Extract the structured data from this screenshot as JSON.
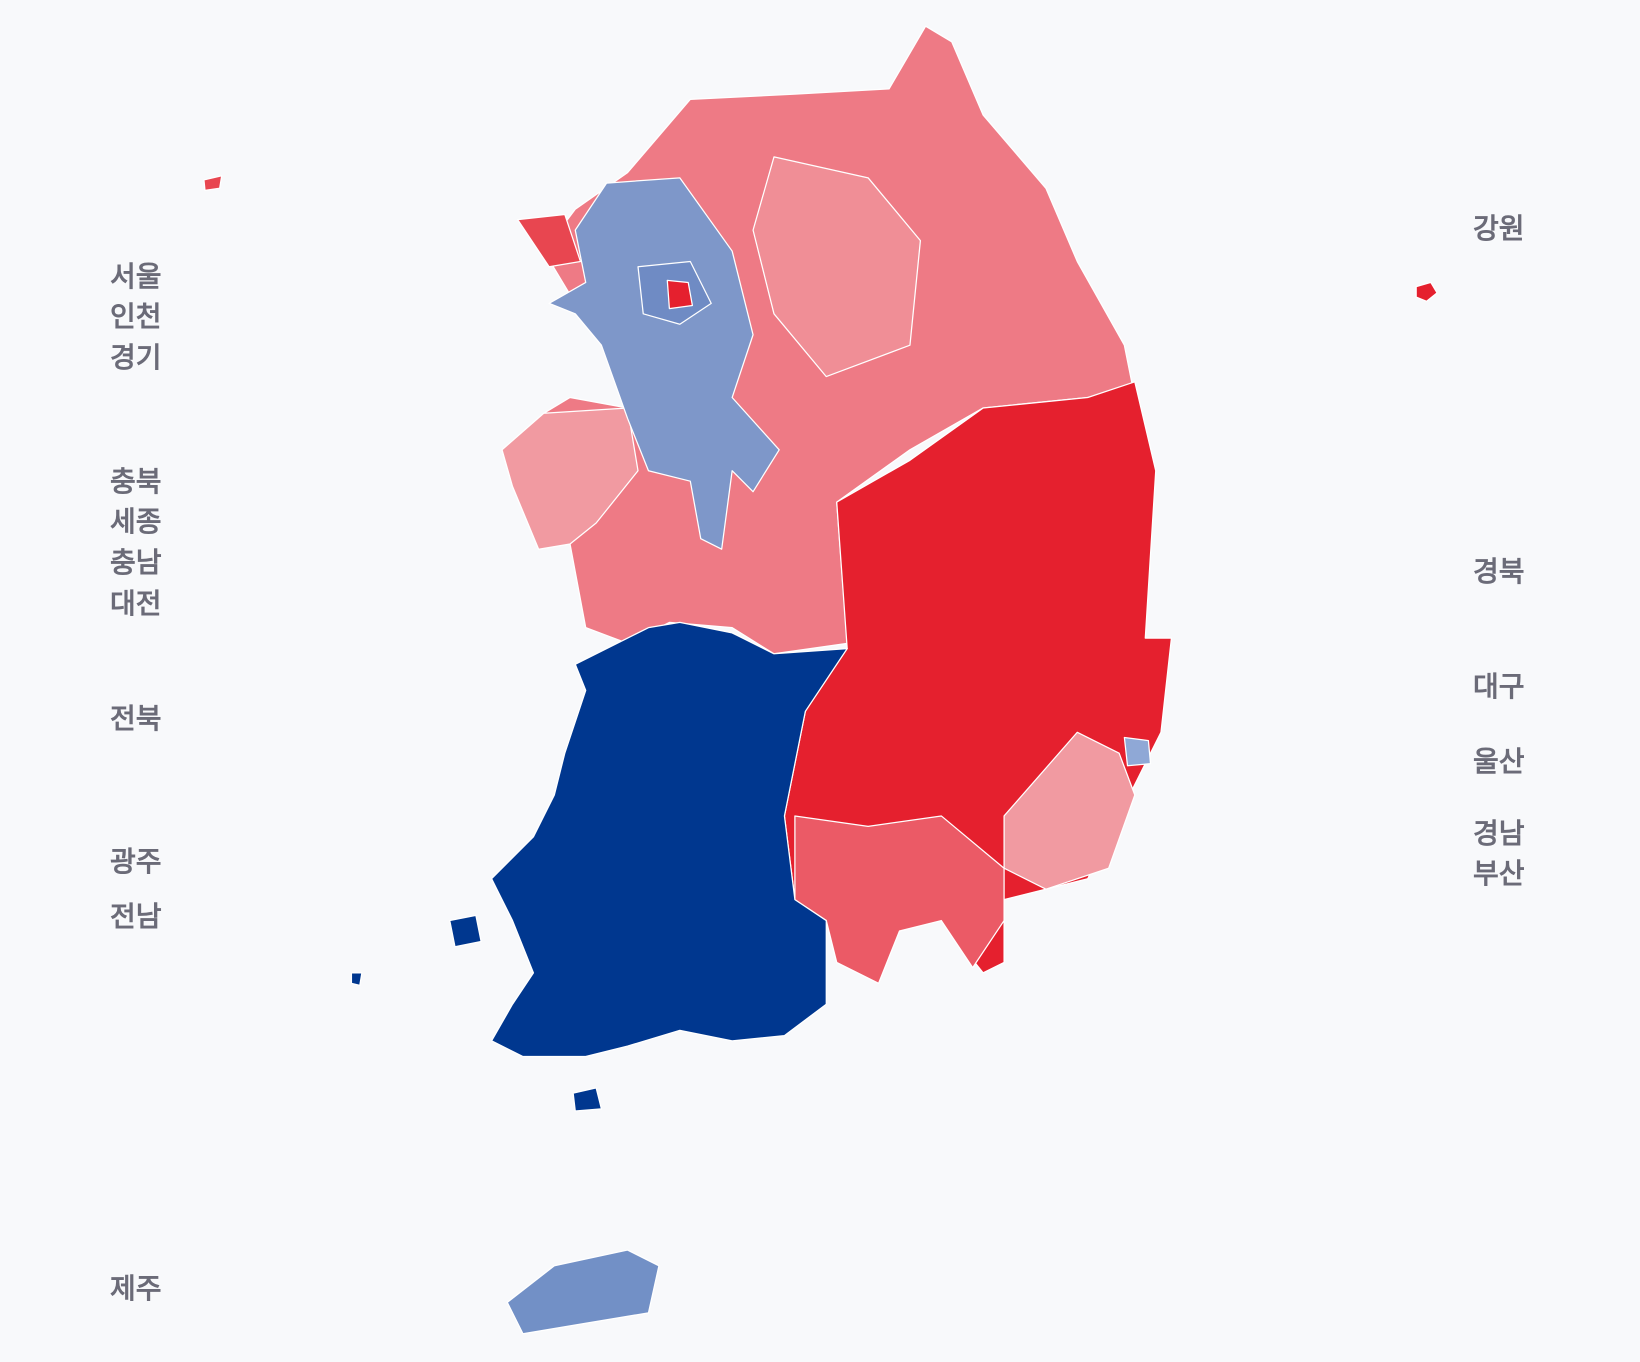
{
  "labels": {
    "left": [
      [
        "서울",
        "인천",
        "경기"
      ],
      [
        "충북",
        "세종",
        "충남",
        "대전"
      ],
      [
        "전북"
      ],
      [
        "광주"
      ],
      [
        "전남"
      ],
      [
        "제주"
      ]
    ],
    "right": [
      [
        "강원"
      ],
      [
        "경북"
      ],
      [
        "대구"
      ],
      [
        "울산"
      ],
      [
        "경남",
        "부산"
      ]
    ]
  }
}
